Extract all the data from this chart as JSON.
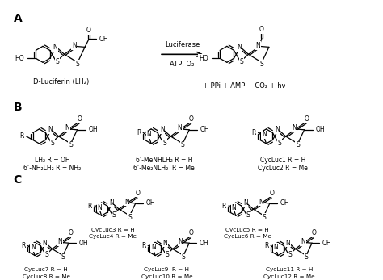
{
  "background_color": "#ffffff",
  "figure_width": 4.74,
  "figure_height": 3.47,
  "dpi": 100,
  "section_labels": [
    "A",
    "B",
    "C"
  ],
  "panel_A": {
    "reactant_label": "D-Luciferin (LH₂)",
    "arrow_text_top": "Luciferase",
    "arrow_text_bottom": "ATP, O₂",
    "product_label": "+ PPi + AMP + CO₂ + hν"
  },
  "panel_B": {
    "labels_col1": [
      "LH₂ R = OH",
      "6’-NH₂LH₂ R = NH₂"
    ],
    "labels_col2": [
      "6’-MeNHLH₂ R = H",
      "6’-Me₂NLH₂  R = Me"
    ],
    "labels_col3": [
      "CycLuc1 R = H",
      "CycLuc2 R = Me"
    ]
  },
  "panel_C": {
    "labels_row1_col1": [
      "CycLuc3 R = H",
      "CycLuc4 R = Me"
    ],
    "labels_row1_col2": [
      "CycLuc5 R = H",
      "CycLuc6 R = Me"
    ],
    "labels_row2_col1": [
      "CycLuc7 R = H",
      "CycLuc8 R = Me"
    ],
    "labels_row2_col2": [
      "CycLuc9  R = H",
      "CycLuc10 R = Me"
    ],
    "labels_row2_col3": [
      "CycLuc11 R = H",
      "CycLuc12 R = Me"
    ]
  }
}
